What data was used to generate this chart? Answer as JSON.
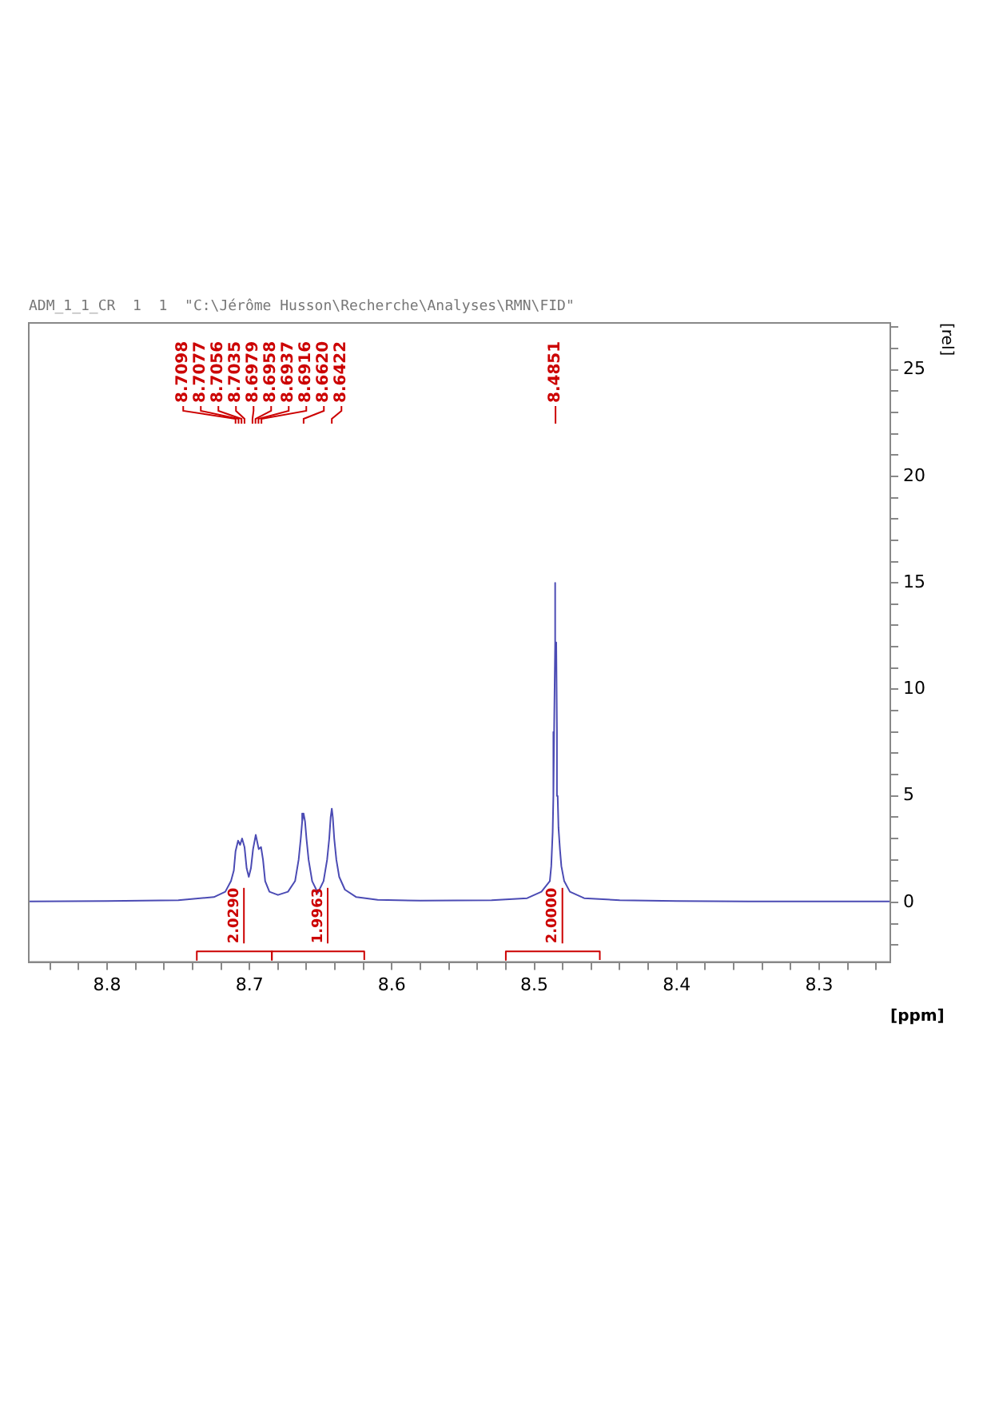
{
  "chart_data": {
    "type": "line",
    "xlabel": "[ppm]",
    "ylabel": "[rel]",
    "xlim": [
      8.855,
      8.25
    ],
    "xticks": [
      {
        "value": 8.26,
        "label": null
      },
      {
        "value": 8.28,
        "label": null
      },
      8.3,
      {
        "value": 8.32,
        "label": null
      },
      {
        "value": 8.34,
        "label": null
      },
      {
        "value": 8.36,
        "label": null
      },
      {
        "value": 8.38,
        "label": null
      },
      8.4,
      {
        "value": 8.42,
        "label": null
      },
      {
        "value": 8.44,
        "label": null
      },
      {
        "value": 8.46,
        "label": null
      },
      {
        "value": 8.48,
        "label": null
      },
      8.5,
      {
        "value": 8.52,
        "label": null
      },
      {
        "value": 8.54,
        "label": null
      },
      {
        "value": 8.56,
        "label": null
      },
      {
        "value": 8.58,
        "label": null
      },
      8.6,
      {
        "value": 8.62,
        "label": null
      },
      {
        "value": 8.64,
        "label": null
      },
      {
        "value": 8.66,
        "label": null
      },
      {
        "value": 8.68,
        "label": null
      },
      8.7,
      {
        "value": 8.72,
        "label": null
      },
      {
        "value": 8.74,
        "label": null
      },
      {
        "value": 8.76,
        "label": null
      },
      {
        "value": 8.78,
        "label": null
      },
      8.8,
      {
        "value": 8.82,
        "label": null
      },
      {
        "value": 8.84,
        "label": null
      }
    ],
    "ylim": [
      -2.8,
      27.2
    ],
    "yticks": [
      {
        "value": -2,
        "label": null
      },
      {
        "value": -1,
        "label": null
      },
      0,
      {
        "value": 1,
        "label": null
      },
      {
        "value": 2,
        "label": null
      },
      {
        "value": 3,
        "label": null
      },
      {
        "value": 4,
        "label": null
      },
      5,
      {
        "value": 6,
        "label": null
      },
      {
        "value": 7,
        "label": null
      },
      {
        "value": 8,
        "label": null
      },
      {
        "value": 9,
        "label": null
      },
      10,
      {
        "value": 11,
        "label": null
      },
      {
        "value": 12,
        "label": null
      },
      {
        "value": 13,
        "label": null
      },
      {
        "value": 14,
        "label": null
      },
      15,
      {
        "value": 16,
        "label": null
      },
      {
        "value": 17,
        "label": null
      },
      {
        "value": 18,
        "label": null
      },
      {
        "value": 19,
        "label": null
      },
      20,
      {
        "value": 21,
        "label": null
      },
      {
        "value": 22,
        "label": null
      },
      {
        "value": 23,
        "label": null
      },
      {
        "value": 24,
        "label": null
      },
      25,
      {
        "value": 26,
        "label": null
      },
      {
        "value": 27,
        "label": null
      }
    ],
    "grid": false,
    "legend": false,
    "marker": "none",
    "line_style": "solid",
    "x": [
      8.25,
      8.3,
      8.35,
      8.4,
      8.44,
      8.465,
      8.475,
      8.479,
      8.481,
      8.482,
      8.483,
      8.4836,
      8.4841,
      8.4846,
      8.4851,
      8.4856,
      8.4861,
      8.4866,
      8.4871,
      8.4881,
      8.4891,
      8.495,
      8.505,
      8.53,
      8.58,
      8.61,
      8.625,
      8.633,
      8.637,
      8.639,
      8.6405,
      8.6415,
      8.6422,
      8.643,
      8.644,
      8.6455,
      8.648,
      8.652,
      8.656,
      8.6585,
      8.66,
      8.661,
      8.662,
      8.663,
      8.664,
      8.6655,
      8.668,
      8.673,
      8.68,
      8.686,
      8.689,
      8.6905,
      8.6919,
      8.6935,
      8.6956,
      8.6975,
      8.699,
      8.7005,
      8.702,
      8.7035,
      8.7052,
      8.7066,
      8.708,
      8.7098,
      8.711,
      8.713,
      8.717,
      8.725,
      8.75,
      8.8,
      8.855
    ],
    "series": [
      {
        "color": "#4b4bb4",
        "values": [
          0.05,
          0.05,
          0.05,
          0.06,
          0.1,
          0.2,
          0.5,
          1.0,
          1.7,
          2.5,
          3.5,
          5.0,
          8.0,
          12.2,
          15.0,
          12.2,
          8.0,
          5.0,
          3.3,
          1.7,
          1.0,
          0.5,
          0.2,
          0.1,
          0.08,
          0.12,
          0.25,
          0.6,
          1.2,
          2.0,
          3.0,
          4.0,
          4.4,
          4.0,
          3.0,
          2.0,
          1.0,
          0.45,
          1.0,
          2.0,
          3.0,
          3.8,
          4.17,
          3.8,
          3.0,
          2.0,
          1.0,
          0.5,
          0.35,
          0.5,
          1.0,
          2.0,
          2.6,
          2.5,
          3.17,
          2.5,
          1.6,
          1.2,
          1.6,
          2.6,
          3.0,
          2.7,
          2.9,
          2.4,
          1.5,
          1.0,
          0.5,
          0.25,
          0.1,
          0.06,
          0.05
        ]
      },
      {
        "type": "line",
        "name": "2.0000",
        "color": "#cc0000",
        "x": [
          8.454,
          8.454,
          8.52,
          8.52
        ],
        "values": [
          -2.7,
          -2.3,
          -2.3,
          -2.7
        ]
      },
      {
        "type": "line",
        "name": "1.9963",
        "color": "#cc0000",
        "x": [
          8.6194,
          8.6194,
          8.6843,
          8.6843
        ],
        "values": [
          -2.7,
          -2.3,
          -2.3,
          -2.7
        ]
      },
      {
        "type": "line",
        "name": "2.0290",
        "color": "#cc0000",
        "x": [
          8.6843,
          8.6843,
          8.737,
          8.737
        ],
        "values": [
          -2.7,
          -2.3,
          -2.3,
          -2.7
        ]
      }
    ],
    "annotations": [
      "ADM_1_1_CR  1  1  \"C:\\Jérôme Husson\\Recherche\\Analyses\\RMN\\FID\"",
      {
        "text": "8.4851",
        "x": 8.4851
      },
      {
        "text": "8.6422",
        "x": 8.6422
      },
      {
        "text": "8.6620",
        "x": 8.662
      },
      {
        "text": "8.6916",
        "x": 8.6916
      },
      {
        "text": "8.6937",
        "x": 8.6937
      },
      {
        "text": "8.6958",
        "x": 8.6958
      },
      {
        "text": "8.6979",
        "x": 8.6979
      },
      {
        "text": "8.7035",
        "x": 8.7035
      },
      {
        "text": "8.7056",
        "x": 8.7056
      },
      {
        "text": "8.7077",
        "x": 8.7077
      },
      {
        "text": "8.7098",
        "x": 8.7098
      }
    ]
  }
}
